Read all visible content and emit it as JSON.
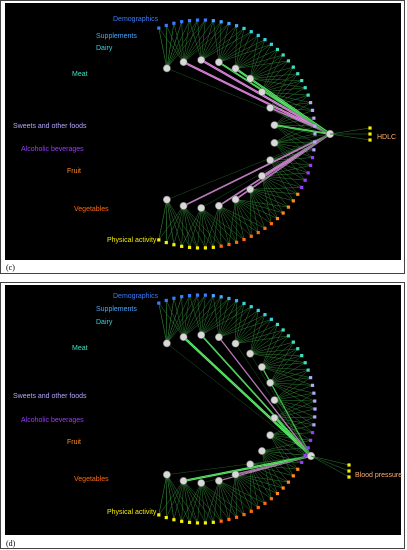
{
  "panels": [
    {
      "caption": "(c)",
      "outcome_label": "HDLC",
      "groups": [
        {
          "name": "Demographics",
          "color": "#3a7bff"
        },
        {
          "name": "Supplements",
          "color": "#45a8ff"
        },
        {
          "name": "Dairy",
          "color": "#33d6e0"
        },
        {
          "name": "Meat",
          "color": "#3fe0c0"
        },
        {
          "name": "Sweets and other foods",
          "color": "#b6a6ff"
        },
        {
          "name": "Alcoholic beverages",
          "color": "#9b3bff"
        },
        {
          "name": "Fruit",
          "color": "#ff8a20"
        },
        {
          "name": "Vegetables",
          "color": "#ff6a10"
        },
        {
          "name": "Physical activity",
          "color": "#f7f000"
        }
      ]
    },
    {
      "caption": "(d)",
      "outcome_label": "Blood pressure",
      "groups": [
        {
          "name": "Demographics",
          "color": "#3a7bff"
        },
        {
          "name": "Supplements",
          "color": "#45a8ff"
        },
        {
          "name": "Dairy",
          "color": "#33d6e0"
        },
        {
          "name": "Meat",
          "color": "#3fe0c0"
        },
        {
          "name": "Sweets and other foods",
          "color": "#b6a6ff"
        },
        {
          "name": "Alcoholic beverages",
          "color": "#9b3bff"
        },
        {
          "name": "Fruit",
          "color": "#ff8a20"
        },
        {
          "name": "Vegetables",
          "color": "#ff6a10"
        },
        {
          "name": "Physical activity",
          "color": "#f7f000"
        }
      ]
    }
  ],
  "colors": {
    "edge_positive": "#5cf06a",
    "edge_negative": "#ee82ee",
    "thin_edge": "#2e7d32",
    "node_fill": "#d9d9d9"
  }
}
